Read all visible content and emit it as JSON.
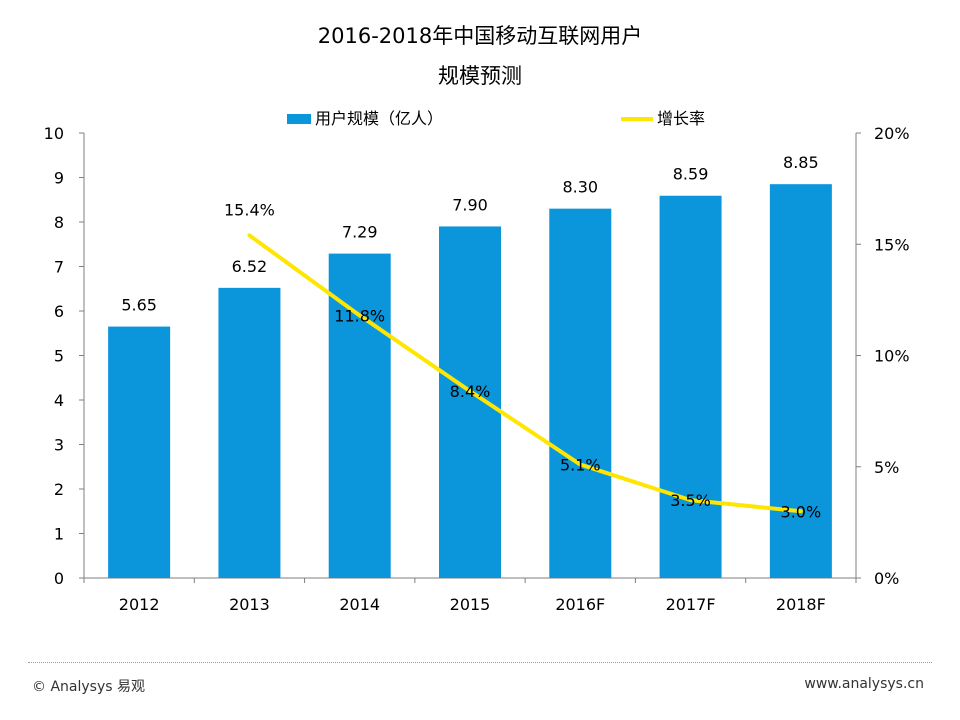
{
  "page": {
    "title_line1": "2016-2018年中国移动互联网用户",
    "title_line2": "规模预测",
    "footer_left": "© Analysys 易观",
    "footer_right": "www.analysys.cn"
  },
  "colors": {
    "bar": "#0B96DC",
    "line": "#FFE600",
    "axis": "#7F7F7F"
  },
  "chart_data": {
    "type": "bar+line",
    "categories": [
      "2012",
      "2013",
      "2014",
      "2015",
      "2016F",
      "2017F",
      "2018F"
    ],
    "series": [
      {
        "name": "用户规模（亿人）",
        "type": "bar",
        "axis": "left",
        "values": [
          5.65,
          6.52,
          7.29,
          7.9,
          8.3,
          8.59,
          8.85
        ],
        "labels": [
          "5.65",
          "6.52",
          "7.29",
          "7.90",
          "8.30",
          "8.59",
          "8.85"
        ]
      },
      {
        "name": "增长率",
        "type": "line",
        "axis": "right",
        "values": [
          null,
          15.4,
          11.8,
          8.4,
          5.1,
          3.5,
          3.0
        ],
        "labels": [
          "",
          "15.4%",
          "11.8%",
          "8.4%",
          "5.1%",
          "3.5%",
          "3.0%"
        ]
      }
    ],
    "y_left": {
      "min": 0,
      "max": 10,
      "ticks": [
        "0",
        "1",
        "2",
        "3",
        "4",
        "5",
        "6",
        "7",
        "8",
        "9",
        "10"
      ]
    },
    "y_right": {
      "min": 0,
      "max": 20,
      "ticks": [
        "0%",
        "5%",
        "10%",
        "15%",
        "20%"
      ]
    },
    "legend_position": "top"
  }
}
